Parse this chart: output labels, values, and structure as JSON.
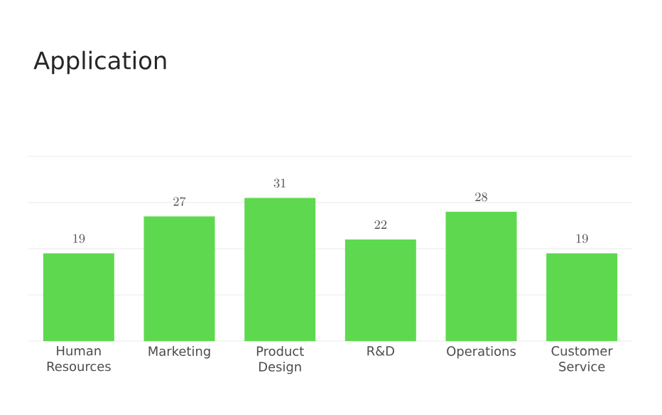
{
  "chart_data": {
    "type": "bar",
    "title": "Application",
    "categories": [
      "Human Resources",
      "Marketing",
      "Product Design",
      "R&D",
      "Operations",
      "Customer Service"
    ],
    "values": [
      19,
      27,
      31,
      22,
      28,
      19
    ],
    "color": "#5ed94f",
    "data_labels": true,
    "grid": "y",
    "tick_labels": "x",
    "ylim": [
      0,
      40
    ],
    "yticks": [
      {
        "value": 0,
        "label": null
      },
      {
        "value": 10,
        "label": null
      },
      {
        "value": 20,
        "label": null
      },
      {
        "value": 30,
        "label": null
      },
      {
        "value": 40,
        "label": null
      }
    ]
  }
}
